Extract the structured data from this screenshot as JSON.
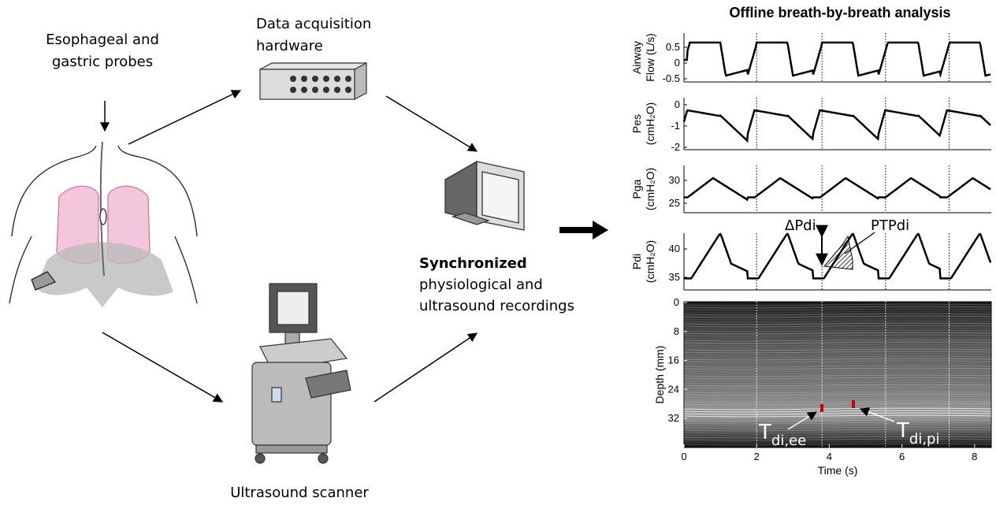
{
  "left": {
    "probes_label": [
      "Esophageal and",
      "gastric probes"
    ],
    "hardware_label": [
      "Data acquisition",
      "hardware"
    ],
    "recordings_label": {
      "bold": "Synchronized",
      "lines": [
        "physiological and",
        "ultrasound recordings"
      ]
    },
    "scanner_label": "Ultrasound scanner"
  },
  "analysis": {
    "title": "Offline breath-by-breath analysis",
    "panels": [
      {
        "ylabel": [
          "Airway",
          "Flow (L/s)"
        ],
        "yticks": [
          0.5,
          0,
          -0.5
        ]
      },
      {
        "ylabel": [
          "Pes",
          "(cmH₂O)"
        ],
        "yticks": [
          0,
          -1,
          -2
        ]
      },
      {
        "ylabel": [
          "Pga",
          "(cmH₂O)"
        ],
        "yticks": [
          30,
          25
        ]
      },
      {
        "ylabel": [
          "Pdi",
          "(cmH₂O)"
        ],
        "yticks": [
          40,
          35
        ]
      }
    ],
    "ultrasound": {
      "ylabel": "Depth (mm)",
      "yticks": [
        0,
        8,
        16,
        24,
        32
      ]
    },
    "xlabel": "Time (s)",
    "xticks": [
      0,
      2,
      4,
      6,
      8
    ],
    "annotations": {
      "delta_pdi": "ΔPdi",
      "ptp_pdi": "PTPdi",
      "tdi_ee": {
        "main": "T",
        "sub": "di,ee"
      },
      "tdi_pi": {
        "main": "T",
        "sub": "di,pi"
      }
    }
  }
}
